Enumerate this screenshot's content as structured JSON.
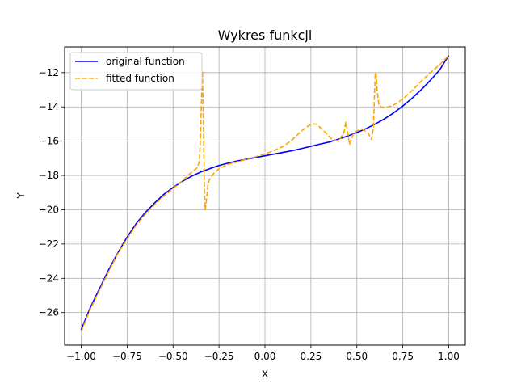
{
  "chart_data": {
    "type": "line",
    "title": "Wykres funkcji",
    "xlabel": "X",
    "ylabel": "Y",
    "xlim": [
      -1.09,
      1.09
    ],
    "ylim": [
      -27.9,
      -10.5
    ],
    "xticks": [
      -1.0,
      -0.75,
      -0.5,
      -0.25,
      0.0,
      0.25,
      0.5,
      0.75,
      1.0
    ],
    "xtick_labels": [
      "−1.00",
      "−0.75",
      "−0.50",
      "−0.25",
      "0.00",
      "0.25",
      "0.50",
      "0.75",
      "1.00"
    ],
    "yticks": [
      -26,
      -24,
      -22,
      -20,
      -18,
      -16,
      -14,
      -12
    ],
    "ytick_labels": [
      "−26",
      "−24",
      "−22",
      "−20",
      "−18",
      "−16",
      "−14",
      "−12"
    ],
    "grid": true,
    "legend_position": "top-left",
    "series": [
      {
        "name": "original function",
        "color": "#0000ff",
        "style": "solid",
        "x": [
          -1.0,
          -0.95,
          -0.9,
          -0.85,
          -0.8,
          -0.75,
          -0.7,
          -0.65,
          -0.6,
          -0.55,
          -0.5,
          -0.45,
          -0.4,
          -0.35,
          -0.3,
          -0.25,
          -0.2,
          -0.15,
          -0.1,
          -0.05,
          0.0,
          0.05,
          0.1,
          0.15,
          0.2,
          0.25,
          0.3,
          0.35,
          0.4,
          0.45,
          0.5,
          0.55,
          0.6,
          0.65,
          0.7,
          0.75,
          0.8,
          0.85,
          0.9,
          0.95,
          1.0
        ],
        "y": [
          -27.0,
          -25.7,
          -24.6,
          -23.5,
          -22.5,
          -21.6,
          -20.8,
          -20.15,
          -19.6,
          -19.1,
          -18.7,
          -18.35,
          -18.05,
          -17.8,
          -17.6,
          -17.42,
          -17.28,
          -17.15,
          -17.05,
          -16.95,
          -16.85,
          -16.75,
          -16.65,
          -16.55,
          -16.43,
          -16.3,
          -16.17,
          -16.05,
          -15.88,
          -15.7,
          -15.5,
          -15.27,
          -15.0,
          -14.7,
          -14.35,
          -13.95,
          -13.5,
          -13.0,
          -12.45,
          -11.85,
          -11.0
        ]
      },
      {
        "name": "fitted function",
        "color": "#ffa500",
        "style": "dashed",
        "x": [
          -1.0,
          -0.95,
          -0.9,
          -0.85,
          -0.8,
          -0.75,
          -0.7,
          -0.65,
          -0.6,
          -0.55,
          -0.5,
          -0.45,
          -0.42,
          -0.39,
          -0.37,
          -0.36,
          -0.355,
          -0.35,
          -0.345,
          -0.34,
          -0.335,
          -0.33,
          -0.325,
          -0.32,
          -0.31,
          -0.3,
          -0.28,
          -0.25,
          -0.2,
          -0.15,
          -0.1,
          -0.05,
          0.0,
          0.05,
          0.1,
          0.15,
          0.2,
          0.25,
          0.28,
          0.32,
          0.36,
          0.4,
          0.43,
          0.44,
          0.45,
          0.46,
          0.47,
          0.48,
          0.5,
          0.53,
          0.56,
          0.58,
          0.59,
          0.6,
          0.605,
          0.61,
          0.62,
          0.64,
          0.67,
          0.7,
          0.75,
          0.8,
          0.85,
          0.9,
          0.95,
          1.0
        ],
        "y": [
          -27.1,
          -25.8,
          -24.7,
          -23.6,
          -22.55,
          -21.7,
          -20.9,
          -20.25,
          -19.7,
          -19.2,
          -18.75,
          -18.35,
          -18.0,
          -17.75,
          -17.55,
          -17.3,
          -16.8,
          -15.5,
          -13.5,
          -11.9,
          -15.0,
          -18.5,
          -20.0,
          -19.6,
          -18.5,
          -18.2,
          -17.9,
          -17.6,
          -17.35,
          -17.2,
          -17.05,
          -16.9,
          -16.75,
          -16.55,
          -16.3,
          -15.9,
          -15.4,
          -15.0,
          -15.0,
          -15.4,
          -15.85,
          -16.0,
          -15.5,
          -14.9,
          -15.5,
          -16.2,
          -15.9,
          -15.6,
          -15.4,
          -15.3,
          -15.5,
          -15.9,
          -15.2,
          -12.0,
          -12.1,
          -13.0,
          -13.9,
          -14.05,
          -14.0,
          -13.9,
          -13.55,
          -13.05,
          -12.5,
          -12.0,
          -11.55,
          -11.0
        ]
      }
    ]
  }
}
